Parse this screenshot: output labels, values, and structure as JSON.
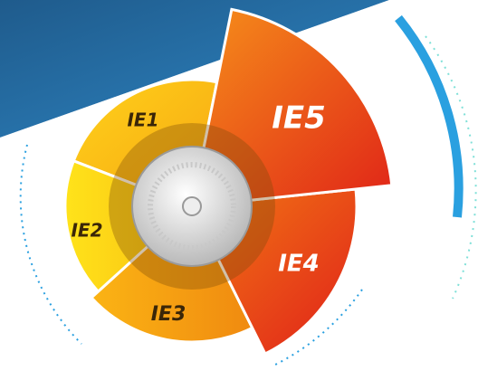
{
  "segments": [
    {
      "label": "IE1"
    },
    {
      "label": "IE2"
    },
    {
      "label": "IE3"
    },
    {
      "label": "IE4"
    },
    {
      "label": "IE5"
    }
  ]
}
